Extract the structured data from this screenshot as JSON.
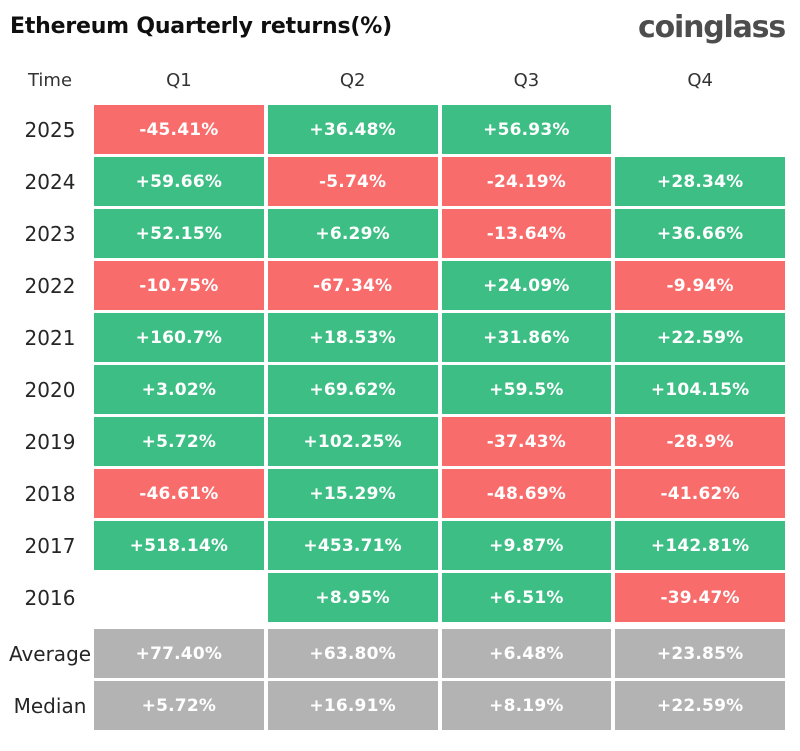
{
  "header": {
    "title": "Ethereum Quarterly returns(%)",
    "logo": "coinglass"
  },
  "colors": {
    "positive": "#3DBE85",
    "negative": "#F96C6C",
    "summary": "#B3B3B3"
  },
  "table": {
    "columns": [
      "Time",
      "Q1",
      "Q2",
      "Q3",
      "Q4"
    ],
    "rows": [
      {
        "label": "2025",
        "cells": [
          {
            "text": "-45.41%",
            "tone": "negative"
          },
          {
            "text": "+36.48%",
            "tone": "positive"
          },
          {
            "text": "+56.93%",
            "tone": "positive"
          },
          {
            "text": "",
            "tone": "empty"
          }
        ]
      },
      {
        "label": "2024",
        "cells": [
          {
            "text": "+59.66%",
            "tone": "positive"
          },
          {
            "text": "-5.74%",
            "tone": "negative"
          },
          {
            "text": "-24.19%",
            "tone": "negative"
          },
          {
            "text": "+28.34%",
            "tone": "positive"
          }
        ]
      },
      {
        "label": "2023",
        "cells": [
          {
            "text": "+52.15%",
            "tone": "positive"
          },
          {
            "text": "+6.29%",
            "tone": "positive"
          },
          {
            "text": "-13.64%",
            "tone": "negative"
          },
          {
            "text": "+36.66%",
            "tone": "positive"
          }
        ]
      },
      {
        "label": "2022",
        "cells": [
          {
            "text": "-10.75%",
            "tone": "negative"
          },
          {
            "text": "-67.34%",
            "tone": "negative"
          },
          {
            "text": "+24.09%",
            "tone": "positive"
          },
          {
            "text": "-9.94%",
            "tone": "negative"
          }
        ]
      },
      {
        "label": "2021",
        "cells": [
          {
            "text": "+160.7%",
            "tone": "positive"
          },
          {
            "text": "+18.53%",
            "tone": "positive"
          },
          {
            "text": "+31.86%",
            "tone": "positive"
          },
          {
            "text": "+22.59%",
            "tone": "positive"
          }
        ]
      },
      {
        "label": "2020",
        "cells": [
          {
            "text": "+3.02%",
            "tone": "positive"
          },
          {
            "text": "+69.62%",
            "tone": "positive"
          },
          {
            "text": "+59.5%",
            "tone": "positive"
          },
          {
            "text": "+104.15%",
            "tone": "positive"
          }
        ]
      },
      {
        "label": "2019",
        "cells": [
          {
            "text": "+5.72%",
            "tone": "positive"
          },
          {
            "text": "+102.25%",
            "tone": "positive"
          },
          {
            "text": "-37.43%",
            "tone": "negative"
          },
          {
            "text": "-28.9%",
            "tone": "negative"
          }
        ]
      },
      {
        "label": "2018",
        "cells": [
          {
            "text": "-46.61%",
            "tone": "negative"
          },
          {
            "text": "+15.29%",
            "tone": "positive"
          },
          {
            "text": "-48.69%",
            "tone": "negative"
          },
          {
            "text": "-41.62%",
            "tone": "negative"
          }
        ]
      },
      {
        "label": "2017",
        "cells": [
          {
            "text": "+518.14%",
            "tone": "positive"
          },
          {
            "text": "+453.71%",
            "tone": "positive"
          },
          {
            "text": "+9.87%",
            "tone": "positive"
          },
          {
            "text": "+142.81%",
            "tone": "positive"
          }
        ]
      },
      {
        "label": "2016",
        "cells": [
          {
            "text": "",
            "tone": "empty"
          },
          {
            "text": "+8.95%",
            "tone": "positive"
          },
          {
            "text": "+6.51%",
            "tone": "positive"
          },
          {
            "text": "-39.47%",
            "tone": "negative"
          }
        ]
      },
      {
        "label": "Average",
        "gap_before": true,
        "cells": [
          {
            "text": "+77.40%",
            "tone": "summary"
          },
          {
            "text": "+63.80%",
            "tone": "summary"
          },
          {
            "text": "+6.48%",
            "tone": "summary"
          },
          {
            "text": "+23.85%",
            "tone": "summary"
          }
        ]
      },
      {
        "label": "Median",
        "cells": [
          {
            "text": "+5.72%",
            "tone": "summary"
          },
          {
            "text": "+16.91%",
            "tone": "summary"
          },
          {
            "text": "+8.19%",
            "tone": "summary"
          },
          {
            "text": "+22.59%",
            "tone": "summary"
          }
        ]
      }
    ]
  },
  "chart_data": {
    "type": "heatmap",
    "title": "Ethereum Quarterly returns(%)",
    "columns": [
      "Q1",
      "Q2",
      "Q3",
      "Q4"
    ],
    "row_labels": [
      "2025",
      "2024",
      "2023",
      "2022",
      "2021",
      "2020",
      "2019",
      "2018",
      "2017",
      "2016",
      "Average",
      "Median"
    ],
    "values_pct": [
      [
        -45.41,
        36.48,
        56.93,
        null
      ],
      [
        59.66,
        -5.74,
        -24.19,
        28.34
      ],
      [
        52.15,
        6.29,
        -13.64,
        36.66
      ],
      [
        -10.75,
        -67.34,
        24.09,
        -9.94
      ],
      [
        160.7,
        18.53,
        31.86,
        22.59
      ],
      [
        3.02,
        69.62,
        59.5,
        104.15
      ],
      [
        5.72,
        102.25,
        -37.43,
        -28.9
      ],
      [
        -46.61,
        15.29,
        -48.69,
        -41.62
      ],
      [
        518.14,
        453.71,
        9.87,
        142.81
      ],
      [
        null,
        8.95,
        6.51,
        -39.47
      ],
      [
        77.4,
        63.8,
        6.48,
        23.85
      ],
      [
        5.72,
        16.91,
        8.19,
        22.59
      ]
    ],
    "color_rule": "positive=green #3DBE85, negative=red #F96C6C, Average/Median summary rows=gray #B3B3B3, missing=blank",
    "legend_position": "none",
    "grid": false
  }
}
